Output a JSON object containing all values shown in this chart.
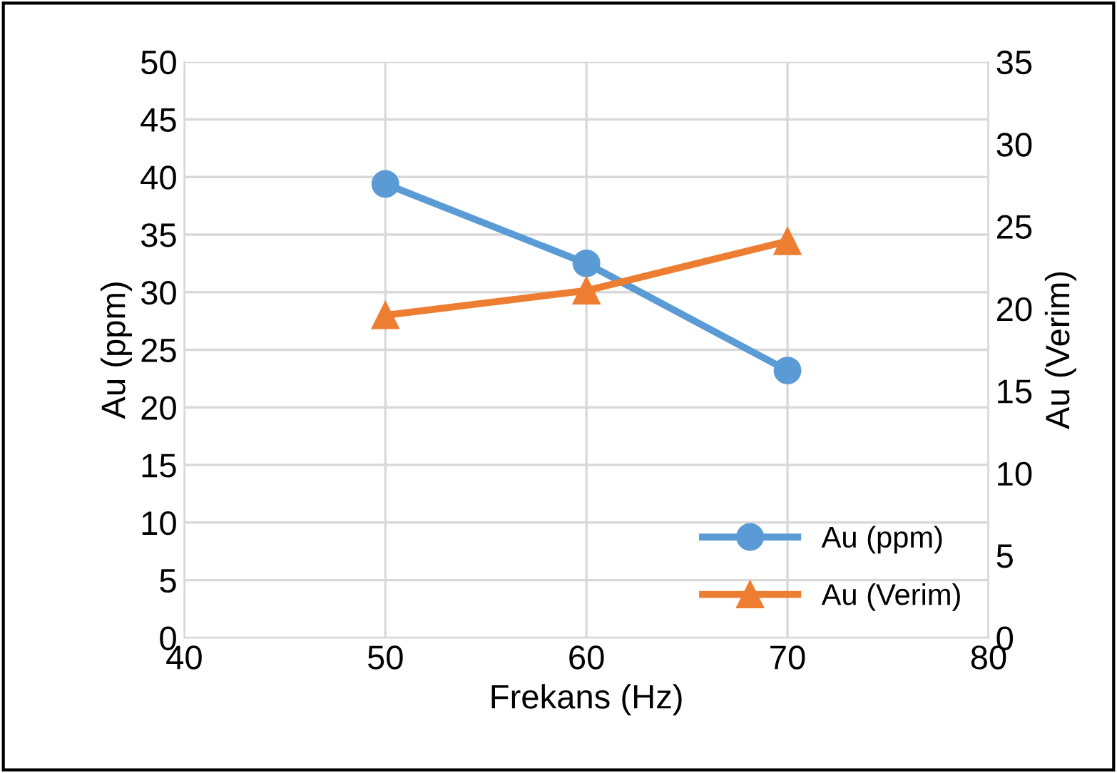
{
  "chart_data": {
    "type": "line",
    "xlabel": "Frekans (Hz)",
    "ylabel": "Au (ppm)",
    "y2label": "Au (Verim)",
    "x": [
      50,
      60,
      70
    ],
    "series": [
      {
        "name": "Au (ppm)",
        "color": "#5b9bd5",
        "values": [
          39.4,
          32.5,
          23.2
        ],
        "marker": "circle"
      },
      {
        "name": "Au (Verim)",
        "color": "#ed7d31",
        "values": [
          19.6,
          21.1,
          24.1
        ],
        "marker": "triangle",
        "axis": "y2"
      }
    ],
    "xlim": [
      40,
      80
    ],
    "xticks": [
      40,
      50,
      60,
      70,
      80
    ],
    "ylim": [
      0,
      50
    ],
    "yticks": [
      0,
      5,
      10,
      15,
      20,
      25,
      30,
      35,
      40,
      45,
      50
    ],
    "y2lim": [
      0,
      35
    ],
    "y2ticks": [
      0,
      5,
      10,
      15,
      20,
      25,
      30,
      35
    ],
    "grid": true,
    "legend": "bottom right",
    "line_style": "solid"
  }
}
